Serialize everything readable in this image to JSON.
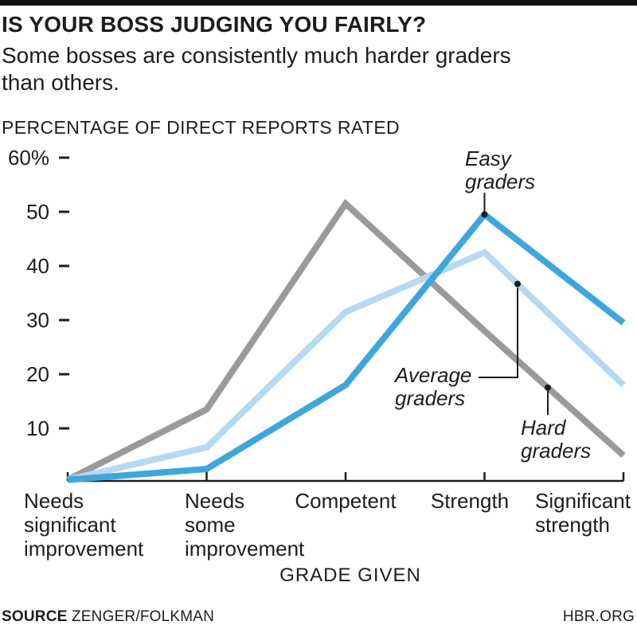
{
  "header": {
    "title": "IS YOUR BOSS JUDGING YOU FAIRLY?",
    "subtitle": "Some bosses are consistently much harder graders than others."
  },
  "chart_data": {
    "type": "line",
    "title": "PERCENTAGE OF DIRECT REPORTS RATED",
    "xlabel": "GRADE GIVEN",
    "ylabel": "Percentage of direct reports rated",
    "ylim": [
      0,
      60
    ],
    "grid": false,
    "legend_position": "inline-callouts",
    "y_ticks": [
      {
        "label": "60%",
        "value": 60
      },
      {
        "label": "50",
        "value": 50
      },
      {
        "label": "40",
        "value": 40
      },
      {
        "label": "30",
        "value": 30
      },
      {
        "label": "20",
        "value": 20
      },
      {
        "label": "10",
        "value": 10
      }
    ],
    "categories": [
      "Needs\nsignificant\nimprovement",
      "Needs\nsome\nimprovement",
      "Competent",
      "Strength",
      "Significant\nstrength"
    ],
    "series": [
      {
        "name": "Hard graders",
        "color": "#9a9a9a",
        "values": [
          0.5,
          13.5,
          51.5,
          28,
          5
        ]
      },
      {
        "name": "Average graders",
        "color": "#b5d9f2",
        "values": [
          0.5,
          6.5,
          31.5,
          42.5,
          18
        ]
      },
      {
        "name": "Easy graders",
        "color": "#3fa6db",
        "values": [
          0.5,
          2.5,
          18,
          49.5,
          29.5
        ]
      }
    ],
    "annotations": [
      {
        "id": "easy",
        "label": "Easy\ngraders",
        "series": "Easy graders"
      },
      {
        "id": "average",
        "label": "Average\ngraders",
        "series": "Average graders"
      },
      {
        "id": "hard",
        "label": "Hard\ngraders",
        "series": "Hard graders"
      }
    ],
    "ink_color": "#1d1d1b"
  },
  "footer": {
    "source_label": "SOURCE",
    "source_value": "ZENGER/FOLKMAN",
    "brand": "HBR.ORG"
  }
}
